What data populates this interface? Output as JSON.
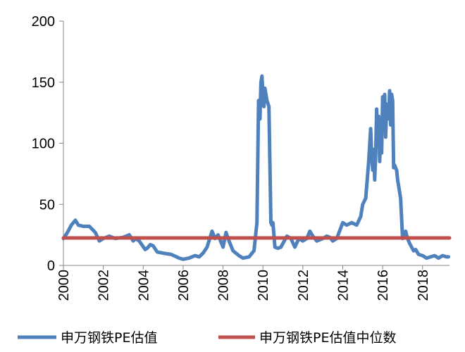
{
  "chart_data": {
    "type": "line",
    "title": "",
    "xlabel": "",
    "ylabel": "",
    "xlim": [
      2000,
      2019.35
    ],
    "ylim": [
      0,
      200
    ],
    "x_ticks": [
      "2000",
      "2002",
      "2004",
      "2006",
      "2008",
      "2010",
      "2012",
      "2014",
      "2016",
      "2018"
    ],
    "y_ticks": [
      "0",
      "50",
      "100",
      "150",
      "200"
    ],
    "grid": false,
    "legend_position": "bottom",
    "series": [
      {
        "name": "申万钢铁PE估值",
        "color": "#4F81BD",
        "x": [
          2000.0,
          2000.2,
          2000.4,
          2000.6,
          2000.75,
          2001.0,
          2001.3,
          2001.6,
          2001.8,
          2002.0,
          2002.3,
          2002.6,
          2003.0,
          2003.3,
          2003.5,
          2003.6,
          2003.8,
          2004.1,
          2004.2,
          2004.35,
          2004.5,
          2004.7,
          2005.0,
          2005.4,
          2005.8,
          2006.0,
          2006.3,
          2006.6,
          2006.8,
          2007.0,
          2007.2,
          2007.45,
          2007.6,
          2007.75,
          2008.0,
          2008.15,
          2008.3,
          2008.5,
          2008.8,
          2009.0,
          2009.3,
          2009.55,
          2009.7,
          2009.78,
          2009.85,
          2009.9,
          2009.95,
          2010.0,
          2010.05,
          2010.1,
          2010.2,
          2010.3,
          2010.4,
          2010.45,
          2010.5,
          2010.6,
          2010.75,
          2010.9,
          2011.2,
          2011.4,
          2011.6,
          2011.8,
          2012.0,
          2012.2,
          2012.35,
          2012.5,
          2012.7,
          2013.0,
          2013.2,
          2013.35,
          2013.5,
          2013.7,
          2014.0,
          2014.2,
          2014.45,
          2014.7,
          2014.9,
          2015.0,
          2015.15,
          2015.3,
          2015.4,
          2015.45,
          2015.5,
          2015.55,
          2015.6,
          2015.65,
          2015.7,
          2015.75,
          2015.8,
          2015.85,
          2015.9,
          2015.95,
          2016.0,
          2016.05,
          2016.1,
          2016.15,
          2016.2,
          2016.25,
          2016.3,
          2016.35,
          2016.4,
          2016.45,
          2016.5,
          2016.55,
          2016.6,
          2016.65,
          2016.7,
          2016.75,
          2016.8,
          2016.9,
          2017.0,
          2017.15,
          2017.25,
          2017.35,
          2017.45,
          2017.55,
          2017.65,
          2017.8,
          2018.0,
          2018.2,
          2018.4,
          2018.6,
          2018.8,
          2019.0,
          2019.2,
          2019.3
        ],
        "y": [
          22,
          27,
          33,
          37,
          33,
          32,
          32,
          27,
          20,
          22,
          24,
          22,
          23,
          25,
          20,
          22,
          20,
          13,
          14,
          17,
          16,
          11,
          10,
          9,
          6,
          5,
          6,
          8,
          7,
          10,
          15,
          28,
          22,
          25,
          15,
          27,
          20,
          12,
          8,
          6,
          7,
          12,
          35,
          135,
          120,
          150,
          155,
          140,
          130,
          145,
          135,
          130,
          35,
          33,
          35,
          15,
          14,
          15,
          24,
          22,
          15,
          22,
          20,
          22,
          28,
          24,
          20,
          22,
          24,
          23,
          20,
          22,
          35,
          33,
          35,
          33,
          40,
          50,
          55,
          85,
          112,
          90,
          78,
          95,
          70,
          90,
          128,
          105,
          122,
          85,
          110,
          92,
          138,
          118,
          140,
          105,
          132,
          125,
          120,
          143,
          115,
          140,
          135,
          80,
          82,
          80,
          78,
          70,
          65,
          55,
          22,
          28,
          22,
          18,
          15,
          12,
          13,
          9,
          8,
          6,
          7,
          8,
          6,
          8,
          7,
          7
        ]
      },
      {
        "name": "申万钢铁PE估值中位数",
        "color": "#C0504D",
        "x": [
          2000.0,
          2019.35
        ],
        "y": [
          22.5,
          22.5
        ]
      }
    ]
  }
}
